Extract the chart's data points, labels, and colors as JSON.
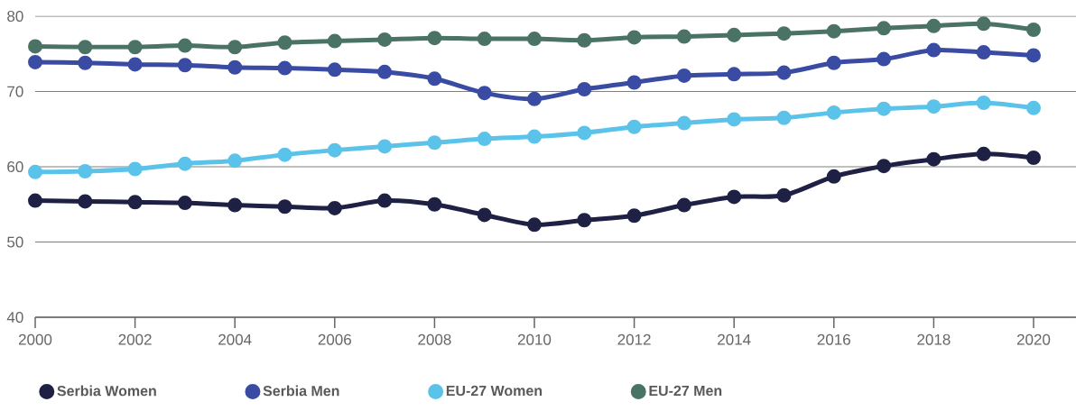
{
  "chart_data": {
    "type": "line",
    "x": [
      2000,
      2001,
      2002,
      2003,
      2004,
      2005,
      2006,
      2007,
      2008,
      2009,
      2010,
      2011,
      2012,
      2013,
      2014,
      2015,
      2016,
      2017,
      2018,
      2019,
      2020
    ],
    "series": [
      {
        "name": "Serbia Women",
        "color": "#1e2044",
        "values": [
          55.5,
          55.4,
          55.3,
          55.2,
          54.9,
          54.7,
          54.5,
          55.5,
          55.0,
          53.6,
          52.3,
          52.9,
          53.5,
          54.9,
          56.0,
          56.2,
          58.7,
          60.1,
          61.0,
          61.7,
          61.2
        ]
      },
      {
        "name": "Serbia Men",
        "color": "#3a4ba3",
        "values": [
          73.9,
          73.8,
          73.6,
          73.5,
          73.2,
          73.1,
          72.9,
          72.6,
          71.7,
          69.8,
          69.0,
          70.3,
          71.2,
          72.1,
          72.3,
          72.5,
          73.8,
          74.3,
          75.5,
          75.2,
          74.8
        ]
      },
      {
        "name": "EU-27 Women",
        "color": "#5bc3ea",
        "values": [
          59.3,
          59.4,
          59.7,
          60.4,
          60.8,
          61.6,
          62.2,
          62.7,
          63.2,
          63.7,
          64.0,
          64.5,
          65.3,
          65.8,
          66.3,
          66.5,
          67.2,
          67.7,
          68.0,
          68.5,
          67.8
        ]
      },
      {
        "name": "EU-27 Men",
        "color": "#4a7366",
        "values": [
          76.0,
          75.9,
          75.9,
          76.1,
          75.9,
          76.5,
          76.7,
          76.9,
          77.1,
          77.0,
          77.0,
          76.8,
          77.2,
          77.3,
          77.5,
          77.7,
          78.0,
          78.4,
          78.7,
          79.0,
          78.2
        ]
      }
    ],
    "xlim": [
      2000,
      2020.85
    ],
    "xticks": [
      2000,
      2002,
      2004,
      2006,
      2008,
      2010,
      2012,
      2014,
      2016,
      2018,
      2020
    ],
    "ylim": [
      40,
      80
    ],
    "yticks": [
      40,
      50,
      60,
      70,
      80
    ],
    "grid": "y",
    "legend": "bottom",
    "marker": "circle",
    "line_style": "solid"
  }
}
